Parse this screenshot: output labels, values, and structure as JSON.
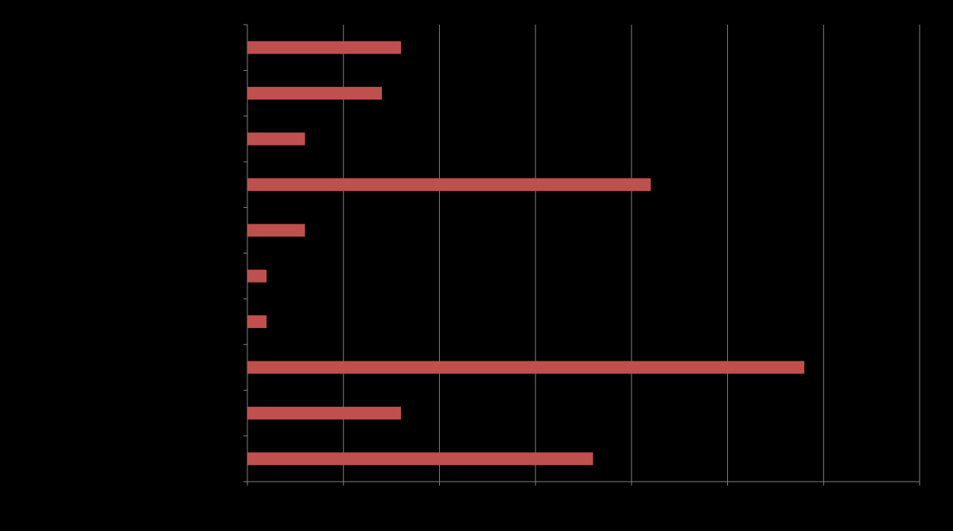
{
  "chart_data": {
    "type": "bar",
    "orientation": "horizontal",
    "categories": [
      "",
      "",
      "",
      "",
      "",
      "",
      "",
      "",
      "",
      ""
    ],
    "values": [
      16,
      14,
      6,
      42,
      6,
      2,
      2,
      58,
      16,
      36
    ],
    "xlim": [
      0,
      70
    ],
    "x_tick_step": 10,
    "grid": true,
    "bar_color": "#c0504d",
    "grid_color": "#7f7f7f",
    "background_color": "#000000"
  }
}
